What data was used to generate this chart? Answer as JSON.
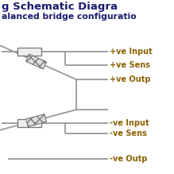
{
  "title_line1": "g Schematic Diagra",
  "title_line2": "alanced bridge configuratio",
  "label_color": "#8B6000",
  "title_color": "#1a1a6e",
  "line_color": "#999999",
  "bg_color": "#ffffff",
  "labels_top": [
    "+ve Input",
    "+ve Sens",
    "+ve Outp"
  ],
  "labels_bot": [
    "-ve Input",
    "-ve Sens",
    "-ve Outp"
  ]
}
